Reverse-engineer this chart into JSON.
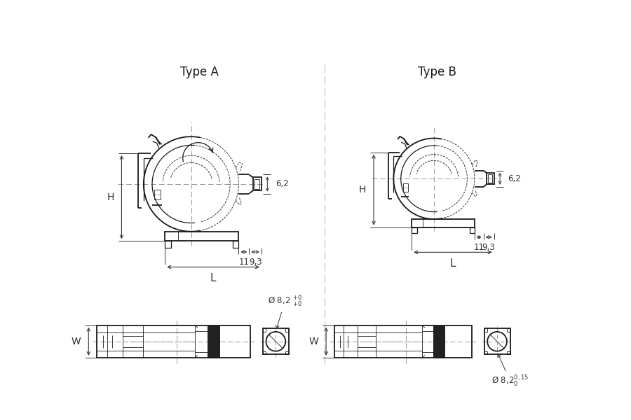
{
  "bg_color": "#ffffff",
  "line_color": "#1a1a1a",
  "dim_color": "#333333",
  "title_A": "Type A",
  "title_B": "Type B",
  "label_H": "H",
  "label_W": "W",
  "label_L": "L",
  "dim_6_2": "6,2",
  "dim_11": "11",
  "dim_9_3": "9,3",
  "dim_dia_A": "Ø 8,2",
  "dim_dia_B": "Ø 8,2",
  "font_title": 12,
  "font_dim": 8.5,
  "font_label": 10
}
